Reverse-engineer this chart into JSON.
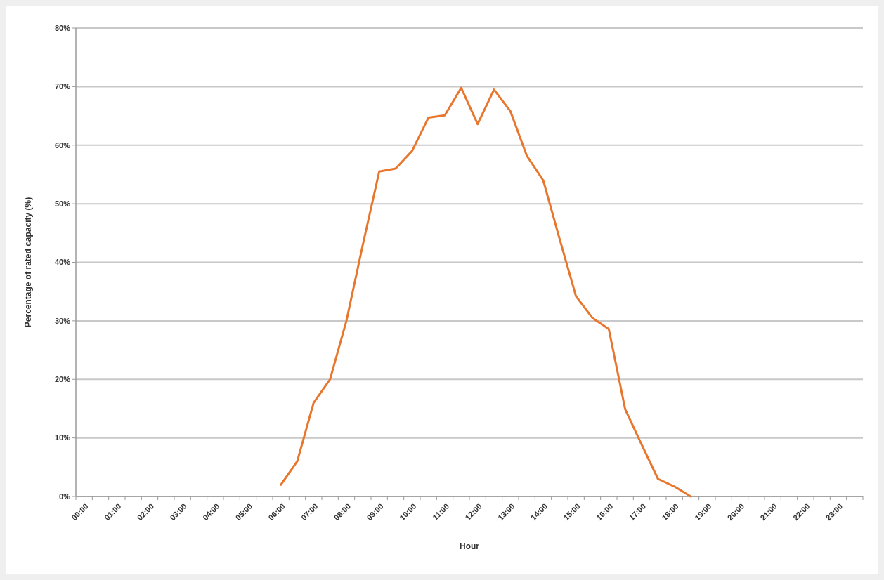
{
  "chart_data": {
    "type": "line",
    "xlabel": "Hour",
    "ylabel": "Percentage of rated capacity (%)",
    "categories": [
      "00:00",
      null,
      "01:00",
      null,
      "02:00",
      null,
      "03:00",
      null,
      "04:00",
      null,
      "05:00",
      null,
      "06:00",
      null,
      "07:00",
      null,
      "08:00",
      null,
      "09:00",
      null,
      "10:00",
      null,
      "11:00",
      null,
      "12:00",
      null,
      "13:00",
      null,
      "14:00",
      null,
      "15:00",
      null,
      "16:00",
      null,
      "17:00",
      null,
      "18:00",
      null,
      "19:00",
      null,
      "20:00",
      null,
      "21:00",
      null,
      "22:00",
      null,
      "23:00",
      null
    ],
    "series": [
      {
        "color": "#e8762d",
        "values": [
          null,
          null,
          null,
          null,
          null,
          null,
          null,
          null,
          null,
          null,
          null,
          null,
          2,
          6,
          16,
          20,
          30,
          43,
          55.5,
          56,
          59,
          64.7,
          65.1,
          69.8,
          63.6,
          69.5,
          65.8,
          58.2,
          54,
          44,
          34.2,
          30.5,
          28.6,
          14.9,
          8.9,
          3,
          1.7,
          0,
          null,
          null,
          null,
          null,
          null,
          null,
          null,
          null,
          null,
          null
        ]
      }
    ],
    "ylim": [
      0,
      80
    ],
    "yticks": [
      {
        "value": 0,
        "label": "0%"
      },
      {
        "value": 10,
        "label": "10%"
      },
      {
        "value": 20,
        "label": "20%"
      },
      {
        "value": 30,
        "label": "30%"
      },
      {
        "value": 40,
        "label": "40%"
      },
      {
        "value": 50,
        "label": "50%"
      },
      {
        "value": 60,
        "label": "60%"
      },
      {
        "value": 70,
        "label": "70%"
      },
      {
        "value": 80,
        "label": "80%"
      }
    ],
    "grid": "y"
  }
}
